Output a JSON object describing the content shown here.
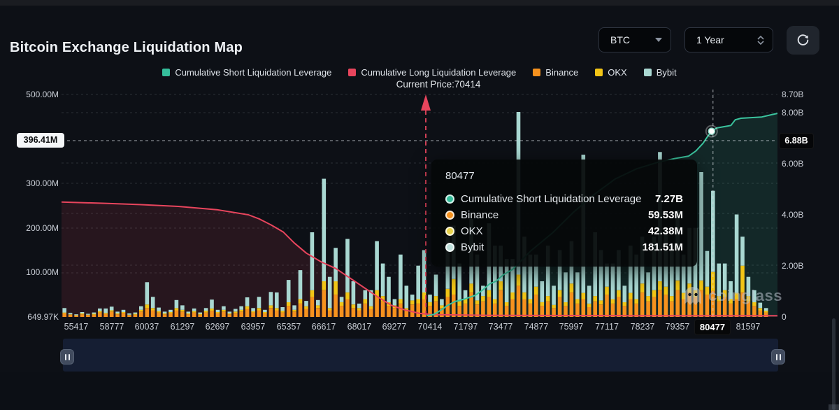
{
  "header": {
    "title": "Bitcoin Exchange Liquidation Map",
    "coin_select": "BTC",
    "range_select": "1 Year"
  },
  "legend": [
    {
      "label": "Cumulative Short Liquidation Leverage",
      "color": "#35BE9B"
    },
    {
      "label": "Cumulative Long Liquidation Leverage",
      "color": "#E8455D"
    },
    {
      "label": "Binance",
      "color": "#F6921E"
    },
    {
      "label": "OKX",
      "color": "#F2C516"
    },
    {
      "label": "Bybit",
      "color": "#A9D8D2"
    }
  ],
  "current_price_label": "Current Price:70414",
  "tooltip": {
    "title": "80477",
    "rows": [
      {
        "name": "Cumulative Short Liquidation Leverage",
        "value": "7.27B",
        "color": "#35BE9B"
      },
      {
        "name": "Binance",
        "value": "59.53M",
        "color": "#F6921E"
      },
      {
        "name": "OKX",
        "value": "42.38M",
        "color": "#E8D24A"
      },
      {
        "name": "Bybit",
        "value": "181.51M",
        "color": "#BFE0DC"
      }
    ]
  },
  "watermark": "coinglass",
  "chart_data": {
    "type": [
      "bar",
      "line"
    ],
    "title": "Bitcoin Exchange Liquidation Map",
    "current_price": 70414,
    "bar_unit": "M",
    "line_unit": "B",
    "x_axis": {
      "labels": [
        "55417",
        "58777",
        "60037",
        "61297",
        "62697",
        "63957",
        "65357",
        "66617",
        "68017",
        "69277",
        "70414",
        "71797",
        "73477",
        "74877",
        "75997",
        "77117",
        "78237",
        "79357",
        "80477",
        "81597"
      ],
      "highlight_index": 18
    },
    "left_axis": {
      "ticks": [
        "500.00M",
        "300.00M",
        "200.00M",
        "100.00M",
        "649.97K"
      ],
      "tick_values": [
        500,
        300,
        200,
        100,
        0.65
      ],
      "lim": [
        0,
        510
      ]
    },
    "right_axis": {
      "ticks": [
        "8.70B",
        "8.00B",
        "6.00B",
        "4.00B",
        "2.00B",
        "0"
      ],
      "tick_values": [
        8.7,
        8.0,
        6.0,
        4.0,
        2.0,
        0
      ],
      "lim": [
        0,
        8.9
      ]
    },
    "crosshair": {
      "x_label": "80477",
      "left_label": "396.41M",
      "right_label": "6.88B",
      "bar_index": 110
    },
    "bar_series": [
      {
        "name": "Binance",
        "color": "#F6921E",
        "values": [
          8,
          5,
          3,
          6,
          4,
          5,
          10,
          7,
          12,
          6,
          9,
          4,
          5,
          12,
          20,
          15,
          10,
          6,
          8,
          15,
          12,
          6,
          10,
          5,
          10,
          14,
          8,
          12,
          6,
          9,
          12,
          18,
          10,
          15,
          8,
          20,
          15,
          10,
          25,
          12,
          30,
          18,
          45,
          20,
          60,
          15,
          50,
          25,
          40,
          20,
          15,
          30,
          18,
          45,
          35,
          25,
          20,
          30,
          15,
          28,
          30,
          40,
          25,
          35,
          20,
          45,
          50,
          25,
          30,
          55,
          28,
          35,
          45,
          30,
          60,
          25,
          40,
          70,
          40,
          30,
          50,
          25,
          35,
          20,
          45,
          25,
          55,
          30,
          40,
          22,
          35,
          28,
          50,
          30,
          45,
          25,
          40,
          30,
          55,
          35,
          45,
          60,
          50,
          35,
          60,
          40,
          55,
          45,
          60,
          50,
          59,
          35,
          45,
          30,
          40,
          55,
          35,
          25,
          15,
          10
        ]
      },
      {
        "name": "OKX",
        "color": "#F2C516",
        "values": [
          2,
          1,
          1,
          2,
          1,
          2,
          3,
          2,
          3,
          2,
          2,
          1,
          2,
          4,
          8,
          5,
          3,
          2,
          3,
          5,
          4,
          2,
          3,
          2,
          4,
          5,
          3,
          4,
          2,
          3,
          4,
          6,
          3,
          5,
          3,
          6,
          5,
          4,
          8,
          4,
          10,
          6,
          15,
          6,
          20,
          5,
          30,
          8,
          15,
          8,
          5,
          10,
          6,
          15,
          12,
          8,
          6,
          10,
          5,
          9,
          10,
          15,
          8,
          12,
          6,
          18,
          35,
          10,
          10,
          20,
          9,
          12,
          15,
          10,
          20,
          8,
          15,
          25,
          15,
          10,
          18,
          8,
          12,
          7,
          15,
          8,
          20,
          10,
          14,
          8,
          12,
          9,
          18,
          10,
          15,
          8,
          14,
          10,
          20,
          12,
          15,
          20,
          18,
          12,
          22,
          14,
          20,
          15,
          22,
          18,
          42,
          12,
          15,
          10,
          14,
          60,
          12,
          8,
          5,
          4
        ]
      },
      {
        "name": "Bybit",
        "color": "#A9D8D2",
        "values": [
          10,
          3,
          2,
          3,
          2,
          3,
          6,
          10,
          8,
          4,
          5,
          3,
          3,
          8,
          50,
          25,
          8,
          4,
          5,
          18,
          10,
          4,
          6,
          3,
          6,
          20,
          5,
          8,
          4,
          6,
          8,
          20,
          7,
          25,
          5,
          30,
          35,
          8,
          50,
          10,
          65,
          12,
          130,
          12,
          230,
          70,
          75,
          12,
          120,
          52,
          10,
          20,
          36,
          110,
          73,
          57,
          14,
          100,
          50,
          13,
          75,
          95,
          17,
          48,
          14,
          117,
          120,
          85,
          20,
          145,
          103,
          23,
          150,
          120,
          80,
          97,
          75,
          365,
          125,
          100,
          72,
          47,
          113,
          43,
          90,
          67,
          95,
          60,
          310,
          40,
          143,
          113,
          52,
          80,
          90,
          37,
          106,
          100,
          105,
          53,
          120,
          290,
          132,
          113,
          158,
          86,
          125,
          140,
          243,
          80,
          182,
          73,
          60,
          40,
          176,
          65,
          43,
          27,
          12,
          6
        ]
      }
    ],
    "line_series": [
      {
        "name": "Cumulative Long Liquidation Leverage",
        "color": "#E8455D",
        "points": [
          [
            0,
            4.5
          ],
          [
            0.061,
            4.45
          ],
          [
            0.109,
            4.4
          ],
          [
            0.163,
            4.33
          ],
          [
            0.217,
            4.2
          ],
          [
            0.261,
            4.0
          ],
          [
            0.276,
            3.84
          ],
          [
            0.293,
            3.6
          ],
          [
            0.31,
            3.32
          ],
          [
            0.325,
            2.9
          ],
          [
            0.342,
            2.5
          ],
          [
            0.363,
            2.15
          ],
          [
            0.383,
            1.9
          ],
          [
            0.412,
            1.35
          ],
          [
            0.441,
            0.8
          ],
          [
            0.461,
            0.45
          ],
          [
            0.479,
            0.28
          ],
          [
            0.5,
            0.14
          ],
          [
            0.52,
            0.09
          ],
          [
            0.598,
            0.06
          ],
          [
            0.793,
            0.05
          ],
          [
            1,
            0.05
          ]
        ]
      },
      {
        "name": "Cumulative Short Liquidation Leverage",
        "color": "#3BC49E",
        "points": [
          [
            0.51,
            0.05
          ],
          [
            0.52,
            0.1
          ],
          [
            0.529,
            0.25
          ],
          [
            0.539,
            0.45
          ],
          [
            0.549,
            0.6
          ],
          [
            0.563,
            0.7
          ],
          [
            0.578,
            0.85
          ],
          [
            0.588,
            1.05
          ],
          [
            0.598,
            1.3
          ],
          [
            0.607,
            1.4
          ],
          [
            0.617,
            1.65
          ],
          [
            0.63,
            1.86
          ],
          [
            0.642,
            2.2
          ],
          [
            0.656,
            2.6
          ],
          [
            0.686,
            3.3
          ],
          [
            0.715,
            4.1
          ],
          [
            0.744,
            4.8
          ],
          [
            0.773,
            5.4
          ],
          [
            0.803,
            5.8
          ],
          [
            0.832,
            6.05
          ],
          [
            0.856,
            6.2
          ],
          [
            0.876,
            6.3
          ],
          [
            0.886,
            6.5
          ],
          [
            0.896,
            6.8
          ],
          [
            0.902,
            7.05
          ],
          [
            0.908,
            7.27
          ],
          [
            0.915,
            7.4
          ],
          [
            0.925,
            7.45
          ],
          [
            0.935,
            7.5
          ],
          [
            0.941,
            7.72
          ],
          [
            0.949,
            7.78
          ],
          [
            0.978,
            7.83
          ],
          [
            0.993,
            7.93
          ],
          [
            1,
            7.97
          ]
        ],
        "marker": [
          0.908,
          7.27
        ]
      }
    ]
  }
}
